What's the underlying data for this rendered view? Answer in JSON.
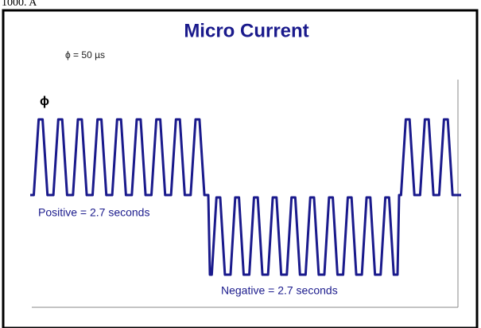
{
  "header_text": "1000. A",
  "diagram": {
    "title": "Micro Current",
    "period_label": "ϕ = 50 µs",
    "phase_symbol": "ϕ",
    "positive_label": "Positive = 2.7 seconds",
    "negative_label": "Negative = 2.7 seconds"
  }
}
